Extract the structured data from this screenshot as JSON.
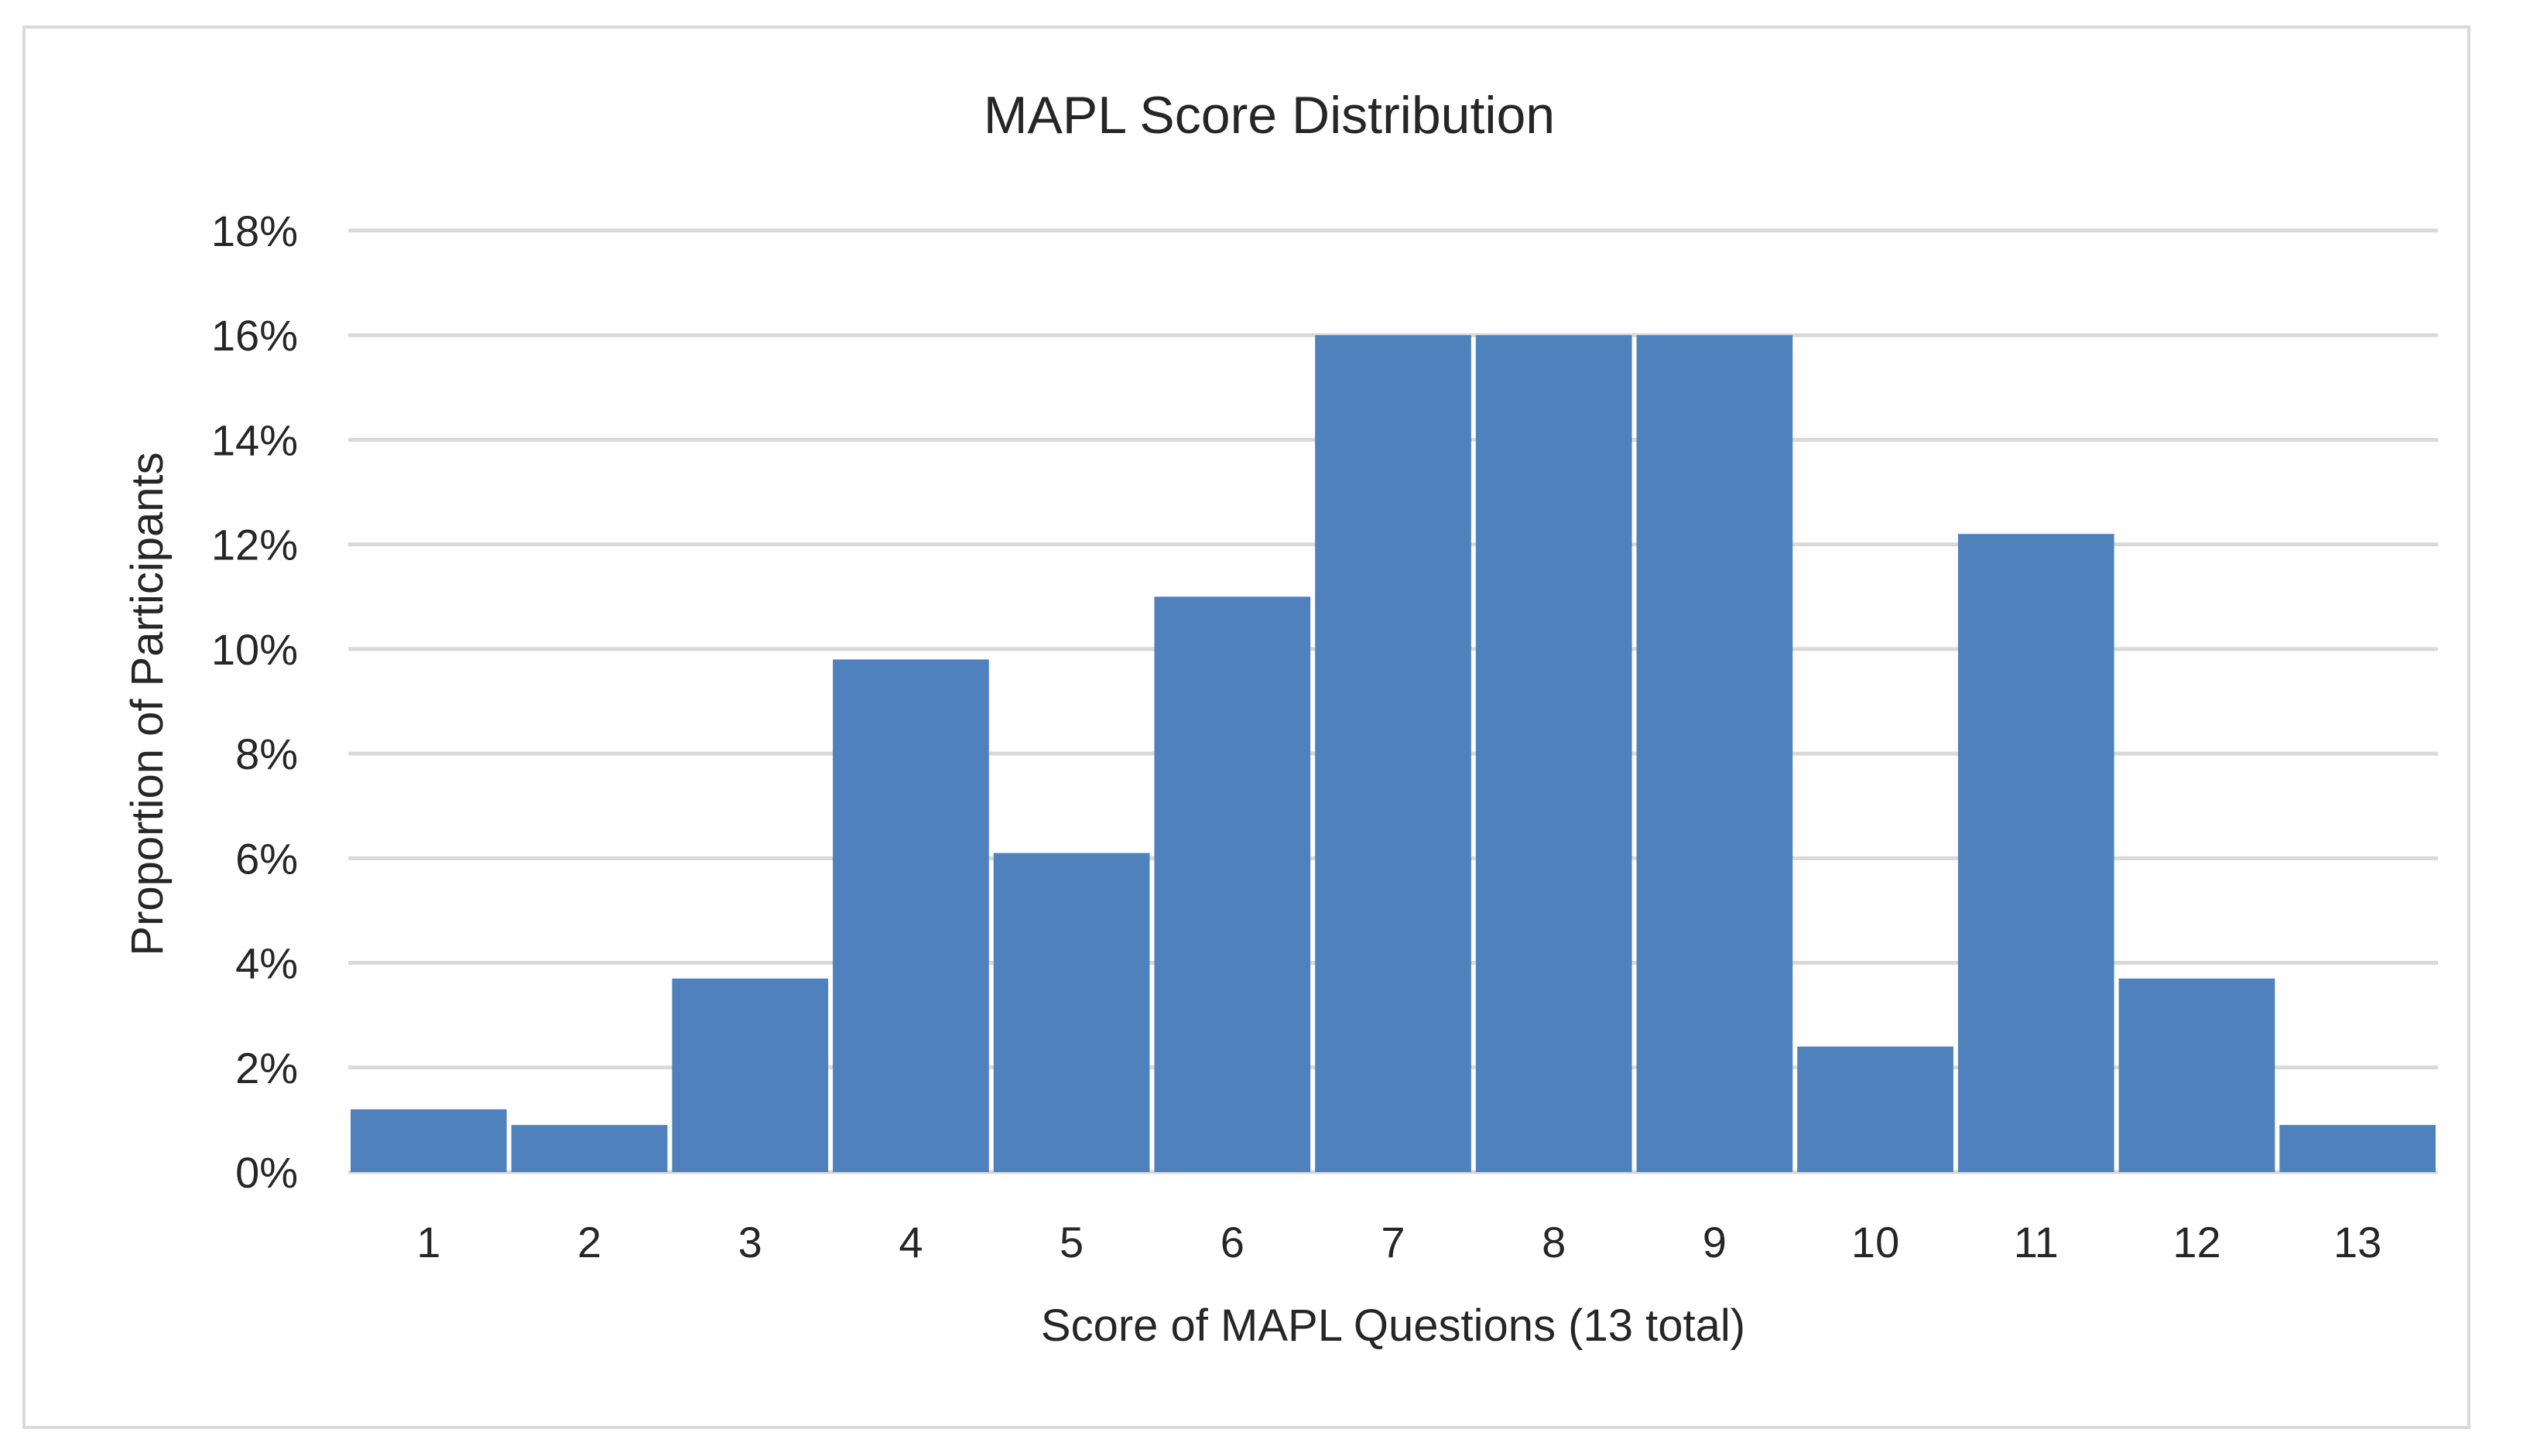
{
  "chart_data": {
    "type": "bar",
    "title": "MAPL Score Distribution",
    "xlabel": "Score of MAPL Questions (13 total)",
    "ylabel": "Proportion of Participants",
    "categories": [
      "1",
      "2",
      "3",
      "4",
      "5",
      "6",
      "7",
      "8",
      "9",
      "10",
      "11",
      "12",
      "13"
    ],
    "values": [
      1.2,
      0.9,
      3.7,
      9.8,
      6.1,
      11.0,
      16.0,
      16.0,
      16.0,
      2.4,
      12.2,
      3.7,
      0.9
    ],
    "value_format": "percent",
    "ylim": [
      0,
      18
    ],
    "yticks": [
      "0%",
      "2%",
      "4%",
      "6%",
      "8%",
      "10%",
      "12%",
      "14%",
      "16%",
      "18%"
    ],
    "grid": true,
    "legend": "none",
    "bar_color": "#4f81bd"
  }
}
